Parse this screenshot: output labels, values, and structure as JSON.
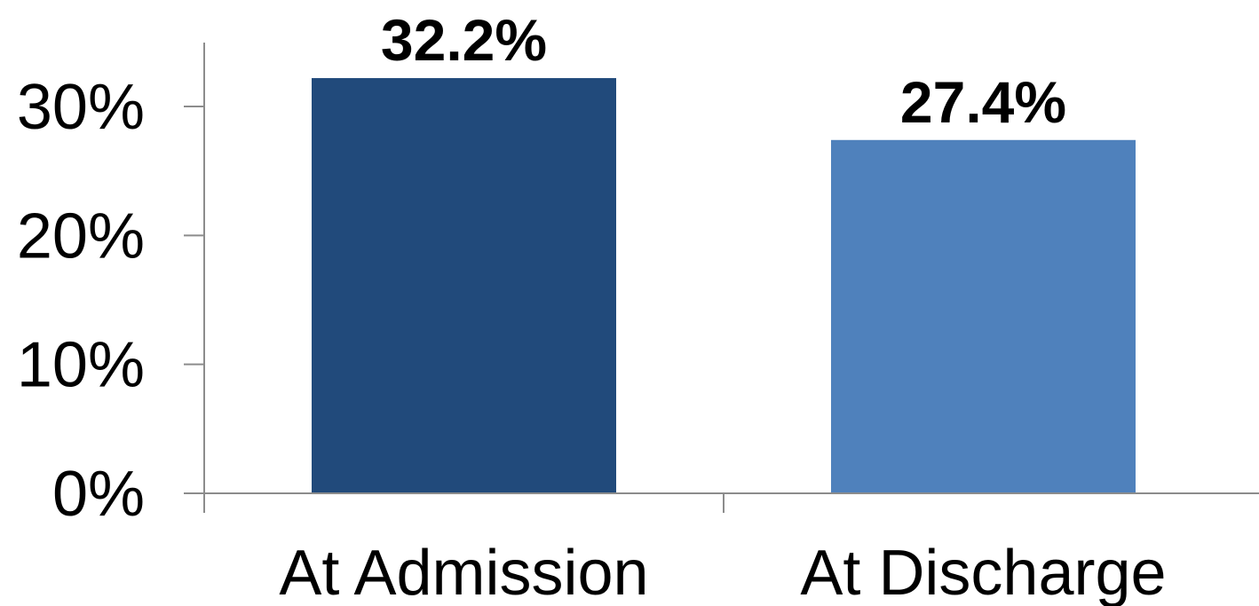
{
  "chart_data": {
    "type": "bar",
    "categories": [
      "At Admission",
      "At Discharge"
    ],
    "values": [
      32.2,
      27.4
    ],
    "value_labels": [
      "32.2%",
      "27.4%"
    ],
    "bar_colors": [
      "#214a7b",
      "#4f81bc"
    ],
    "title": "",
    "xlabel": "",
    "ylabel": "",
    "ylim": [
      0,
      35
    ],
    "yticks": [
      0,
      10,
      20,
      30
    ],
    "ytick_labels": [
      "0%",
      "10%",
      "20%",
      "30%"
    ],
    "grid": false,
    "legend": "none"
  }
}
